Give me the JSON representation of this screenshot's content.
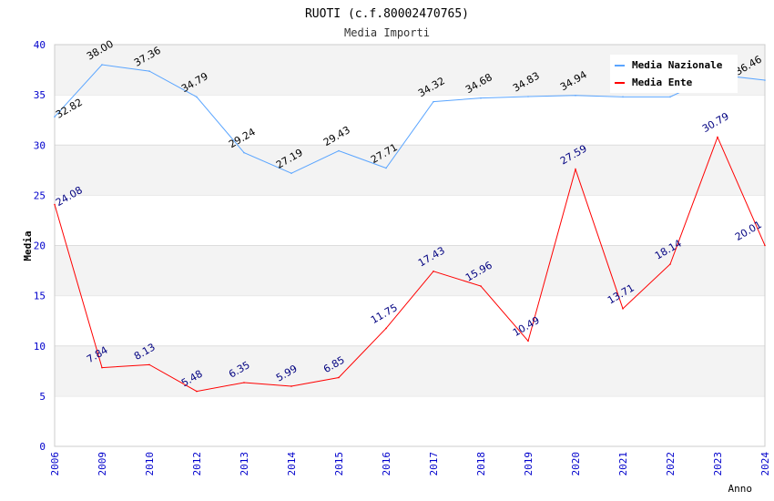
{
  "chart_data": {
    "type": "line",
    "title": "RUOTI (c.f.80002470765)",
    "subtitle": "Media Importi",
    "xlabel": "Anno",
    "ylabel": "Media",
    "ylim": [
      0,
      40
    ],
    "yticks": [
      "0",
      "5",
      "10",
      "15",
      "20",
      "25",
      "30",
      "35",
      "40"
    ],
    "grid": true,
    "legend_position": "top-right",
    "categories": [
      "2006",
      "2009",
      "2010",
      "2012",
      "2013",
      "2014",
      "2015",
      "2016",
      "2017",
      "2018",
      "2019",
      "2020",
      "2021",
      "2022",
      "2023",
      "2024"
    ],
    "series": [
      {
        "name": "Media Nazionale",
        "color": "#5aa5ff",
        "label_color": "#000000",
        "values": [
          32.82,
          38.0,
          37.36,
          34.79,
          29.24,
          27.19,
          29.43,
          27.71,
          34.32,
          34.68,
          34.83,
          34.94,
          34.8,
          34.8,
          37.0,
          36.46
        ],
        "labels": [
          "32.82",
          "38.00",
          "37.36",
          "34.79",
          "29.24",
          "27.19",
          "29.43",
          "27.71",
          "34.32",
          "34.68",
          "34.83",
          "34.94",
          null,
          null,
          null,
          "36.46"
        ]
      },
      {
        "name": "Media Ente",
        "color": "#ff0000",
        "label_color": "#000080",
        "values": [
          24.08,
          7.84,
          8.13,
          5.48,
          6.35,
          5.99,
          6.85,
          11.75,
          17.43,
          15.96,
          10.49,
          27.59,
          13.71,
          18.14,
          30.79,
          20.01
        ],
        "labels": [
          "24.08",
          "7.84",
          "8.13",
          "5.48",
          "6.35",
          "5.99",
          "6.85",
          "11.75",
          "17.43",
          "15.96",
          "10.49",
          "27.59",
          "13.71",
          "18.14",
          "30.79",
          "20.01"
        ]
      }
    ]
  }
}
